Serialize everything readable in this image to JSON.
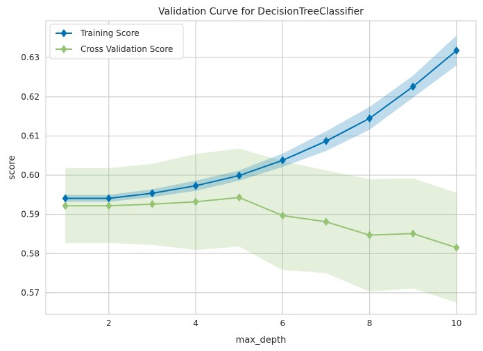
{
  "chart_data": {
    "type": "line",
    "title": "Validation Curve for DecisionTreeClassifier",
    "xlabel": "max_depth",
    "ylabel": "score",
    "xlim": [
      0.55,
      10.45
    ],
    "ylim": [
      0.5645,
      0.6394
    ],
    "xticks": [
      2,
      4,
      6,
      8,
      10
    ],
    "yticks": [
      0.57,
      0.58,
      0.59,
      0.6,
      0.61,
      0.62,
      0.63
    ],
    "ytick_labels": [
      "0.57",
      "0.58",
      "0.59",
      "0.60",
      "0.61",
      "0.62",
      "0.63"
    ],
    "grid": true,
    "legend": "top-left",
    "x": [
      1,
      2,
      3,
      4,
      5,
      6,
      7,
      8,
      9,
      10
    ],
    "series": [
      {
        "name": "Training Score",
        "color": "#0072b2",
        "band_color": "#0072b2",
        "values": [
          0.5941,
          0.5941,
          0.5954,
          0.5973,
          0.5999,
          0.6038,
          0.6087,
          0.6145,
          0.6226,
          0.6318
        ],
        "lower": [
          0.5932,
          0.5932,
          0.5944,
          0.596,
          0.5986,
          0.6021,
          0.6062,
          0.6116,
          0.6198,
          0.628
        ],
        "upper": [
          0.595,
          0.595,
          0.5964,
          0.5986,
          0.6012,
          0.6055,
          0.6112,
          0.6174,
          0.6254,
          0.6356
        ]
      },
      {
        "name": "Cross Validation Score",
        "color": "#95c374",
        "band_color": "#95c374",
        "values": [
          0.5922,
          0.5922,
          0.5926,
          0.5932,
          0.5943,
          0.5897,
          0.5881,
          0.5847,
          0.5851,
          0.5815
        ],
        "lower": [
          0.5827,
          0.5827,
          0.5822,
          0.5809,
          0.5818,
          0.5758,
          0.575,
          0.5703,
          0.5711,
          0.5675
        ],
        "upper": [
          0.6018,
          0.6018,
          0.6029,
          0.6054,
          0.6068,
          0.6036,
          0.6012,
          0.599,
          0.5992,
          0.5955
        ]
      }
    ]
  }
}
